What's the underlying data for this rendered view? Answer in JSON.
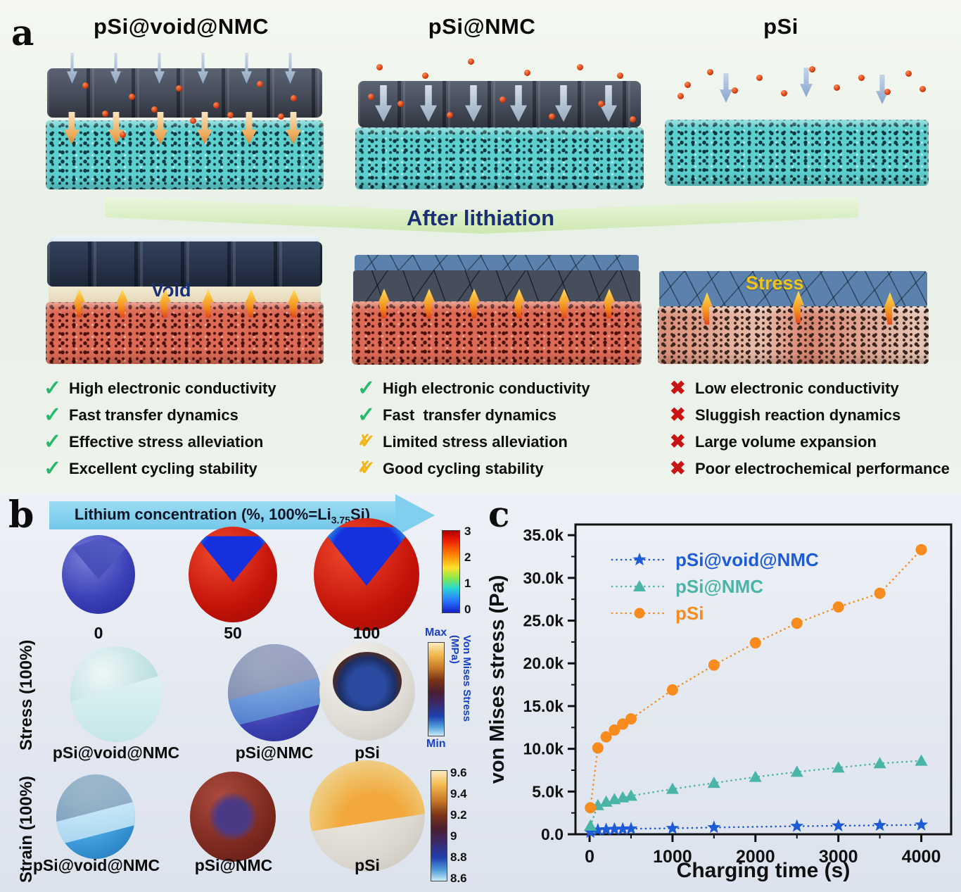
{
  "panel_a": {
    "label": "a",
    "banner": "After lithiation",
    "columns": [
      {
        "title": "pSi@void@NMC",
        "annotation": "Void",
        "items": [
          {
            "icon": "check",
            "text": "High electronic conductivity"
          },
          {
            "icon": "check",
            "text": "Fast transfer dynamics"
          },
          {
            "icon": "check",
            "text": "Effective stress alleviation"
          },
          {
            "icon": "check",
            "text": "Excellent cycling stability"
          }
        ]
      },
      {
        "title": "pSi@NMC",
        "annotation": "",
        "items": [
          {
            "icon": "check",
            "text": "High electronic conductivity"
          },
          {
            "icon": "check",
            "text": "Fast  transfer dynamics"
          },
          {
            "icon": "warn",
            "text": "Limited stress alleviation"
          },
          {
            "icon": "warn",
            "text": "Good cycling stability"
          }
        ]
      },
      {
        "title": "pSi",
        "annotation": "Stress",
        "items": [
          {
            "icon": "cross",
            "text": "Low electronic conductivity"
          },
          {
            "icon": "cross",
            "text": "Sluggish reaction dynamics"
          },
          {
            "icon": "cross",
            "text": "Large volume expansion"
          },
          {
            "icon": "cross",
            "text": "Poor electrochemical performance"
          }
        ]
      }
    ]
  },
  "panel_b": {
    "label": "b",
    "arrow_label": {
      "prefix": "Lithium concentration (%, 100%=Li",
      "sub": "3.75",
      "suffix": "Si)"
    },
    "concentration_row": {
      "labels": [
        "0",
        "50",
        "100"
      ],
      "colorbar_ticks": [
        "3",
        "2",
        "1",
        "0"
      ]
    },
    "stress_row": {
      "label": "Stress (100%)",
      "sphere_labels": [
        "pSi@void@NMC",
        "pSi@NMC",
        "pSi"
      ],
      "colorbar": {
        "max": "Max",
        "min": "Min",
        "title": "Von Mises Stress (MPa)"
      }
    },
    "strain_row": {
      "label": "Strain (100%)",
      "sphere_labels": [
        "pSi@void@NMC",
        "pSi@NMC",
        "pSi"
      ],
      "colorbar_ticks": [
        "9.6",
        "9.4",
        "9.2",
        "9",
        "8.8",
        "8.6"
      ]
    }
  },
  "panel_c": {
    "label": "c"
  },
  "chart_data": {
    "type": "scatter",
    "title": "",
    "xlabel": "Charging time (s)",
    "ylabel": "von Mises stress (Pa)",
    "xlim": [
      -170,
      4360
    ],
    "ylim": [
      0,
      36250
    ],
    "grid": false,
    "legend_position": "top-left",
    "line_style": "dotted",
    "x_ticks": [
      {
        "v": 0,
        "label": "0"
      },
      {
        "v": 1000,
        "label": "1000"
      },
      {
        "v": 2000,
        "label": "2000"
      },
      {
        "v": 3000,
        "label": "3000"
      },
      {
        "v": 4000,
        "label": "4000"
      }
    ],
    "y_ticks": [
      {
        "v": 0,
        "label": "0.0"
      },
      {
        "v": 5000,
        "label": "5.0k"
      },
      {
        "v": 10000,
        "label": "10.0k"
      },
      {
        "v": 15000,
        "label": "15.0k"
      },
      {
        "v": 20000,
        "label": "20.0k"
      },
      {
        "v": 25000,
        "label": "25.0k"
      },
      {
        "v": 30000,
        "label": "30.0k"
      },
      {
        "v": 35000,
        "label": "35.0k"
      }
    ],
    "x_minor_step": 500,
    "y_minor_step": 2500,
    "series": [
      {
        "name": "pSi@void@NMC",
        "color": "#1e5bd6",
        "marker": "star",
        "x": [
          10,
          100,
          200,
          300,
          400,
          500,
          1000,
          1500,
          2500,
          3000,
          3500,
          4000
        ],
        "y": [
          250,
          500,
          550,
          600,
          620,
          650,
          700,
          800,
          950,
          1000,
          1050,
          1100
        ]
      },
      {
        "name": "pSi@NMC",
        "color": "#4ab5a6",
        "marker": "triangle",
        "x": [
          10,
          100,
          200,
          300,
          400,
          500,
          1000,
          1500,
          2000,
          2500,
          3000,
          3500,
          4000
        ],
        "y": [
          1000,
          3400,
          3800,
          4100,
          4300,
          4500,
          5300,
          6000,
          6700,
          7300,
          7800,
          8300,
          8600
        ]
      },
      {
        "name": "pSi",
        "color": "#f78b1d",
        "marker": "circle",
        "x": [
          10,
          100,
          200,
          300,
          400,
          500,
          1000,
          1500,
          2000,
          2500,
          3000,
          3500,
          4000
        ],
        "y": [
          3100,
          10100,
          11400,
          12200,
          12900,
          13500,
          16900,
          19800,
          22400,
          24700,
          26600,
          28200,
          33300
        ]
      }
    ]
  },
  "colors": {
    "check": "#27b96a",
    "warn": "#f2b41c",
    "cross": "#c81414",
    "banner_text": "#1b2f77",
    "void_label": "#1b2f77",
    "stress_label": "#f0c419",
    "series_blue": "#1e5bd6",
    "series_teal": "#4ab5a6",
    "series_orange": "#f78b1d"
  }
}
